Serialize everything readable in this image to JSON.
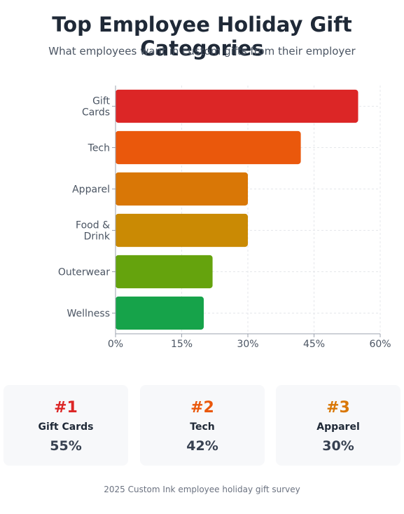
{
  "header": {
    "title": "Top Employee Holiday Gift Categories",
    "subtitle": "What employees want in custom gifts from their employer"
  },
  "chart_data": {
    "type": "bar",
    "orientation": "horizontal",
    "title": "Top Employee Holiday Gift Categories",
    "subtitle": "What employees want in custom gifts from their employer",
    "categories": [
      "Gift Cards",
      "Tech",
      "Apparel",
      "Food & Drink",
      "Outerwear",
      "Wellness"
    ],
    "category_lines": [
      [
        "Gift",
        "Cards"
      ],
      [
        "Tech"
      ],
      [
        "Apparel"
      ],
      [
        "Food &",
        "Drink"
      ],
      [
        "Outerwear"
      ],
      [
        "Wellness"
      ]
    ],
    "values": [
      55,
      42,
      30,
      30,
      22,
      20
    ],
    "colors": [
      "#dc2626",
      "#ea580c",
      "#d97706",
      "#ca8a04",
      "#65a30d",
      "#16a34a"
    ],
    "xlim": [
      0,
      60
    ],
    "x_ticks": [
      0,
      15,
      30,
      45,
      60
    ],
    "x_tick_labels": [
      "0%",
      "15%",
      "30%",
      "45%",
      "60%"
    ],
    "grid": true,
    "legend": "none"
  },
  "highlights": [
    {
      "rank": "#1",
      "name": "Gift Cards",
      "value": "55%",
      "color": "#dc2626"
    },
    {
      "rank": "#2",
      "name": "Tech",
      "value": "42%",
      "color": "#ea580c"
    },
    {
      "rank": "#3",
      "name": "Apparel",
      "value": "30%",
      "color": "#d97706"
    }
  ],
  "footer": {
    "text": "2025 Custom Ink employee holiday gift survey"
  }
}
